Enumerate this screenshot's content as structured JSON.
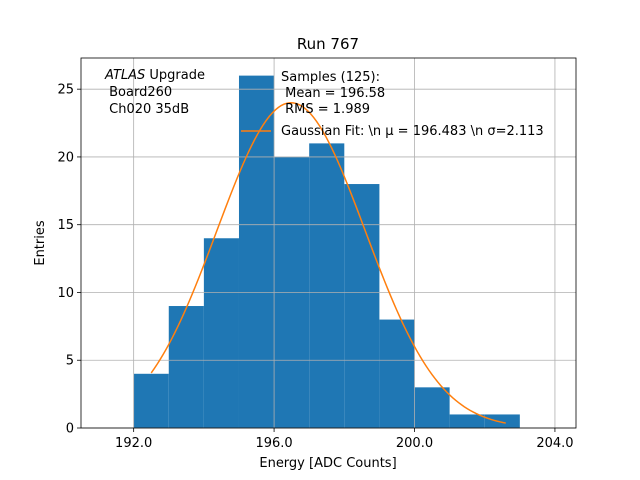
{
  "chart_data": {
    "type": "bar",
    "title": "Run 767",
    "xlabel": "Energy [ADC Counts]",
    "ylabel": "Entries",
    "xlim": [
      190.5,
      204.6
    ],
    "ylim": [
      0,
      27.3
    ],
    "grid": true,
    "x_ticks": [
      192.0,
      196.0,
      200.0,
      204.0
    ],
    "x_tick_labels": [
      "192.0",
      "196.0",
      "200.0",
      "204.0"
    ],
    "y_ticks": [
      0,
      5,
      10,
      15,
      20,
      25
    ],
    "y_tick_labels": [
      "0",
      "5",
      "10",
      "15",
      "20",
      "25"
    ],
    "bin_edges": [
      192,
      193,
      194,
      195,
      196,
      197,
      198,
      199,
      200,
      201,
      202,
      203
    ],
    "values": [
      4,
      9,
      14,
      26,
      20,
      21,
      18,
      8,
      3,
      1,
      1
    ],
    "bar_color": "#1f77b4",
    "fit_color": "#ff7f0e",
    "fit": {
      "mu": 196.483,
      "sigma": 2.113,
      "amplitude": 24.0,
      "x_range": [
        192.5,
        202.6
      ]
    },
    "annotation": {
      "italic": "ATLAS",
      "rest": " Upgrade",
      "line2": " Board260",
      "line3": " Ch020 35dB"
    },
    "legend": {
      "placement": "top-center",
      "header": "Samples (125):",
      "mean": " Mean = 196.58",
      "rms": " RMS = 1.989",
      "fit_label": "Gaussian Fit: \\n μ = 196.483 \\n σ=2.113"
    }
  }
}
